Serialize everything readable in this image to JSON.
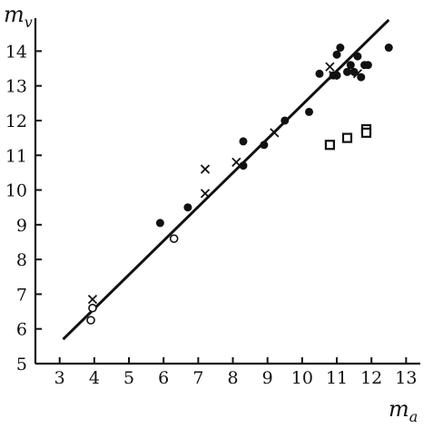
{
  "chart_data": {
    "type": "scatter",
    "title": "",
    "xlabel": "m_a",
    "ylabel": "m_v",
    "xlabel_main": "m",
    "xlabel_sub": "a",
    "ylabel_main": "m",
    "ylabel_sub": "v",
    "xlim": [
      2.3,
      13.2
    ],
    "ylim": [
      5,
      14.95
    ],
    "x_ticks": [
      3,
      4,
      5,
      6,
      7,
      8,
      9,
      10,
      11,
      12,
      13
    ],
    "y_ticks": [
      5,
      6,
      7,
      8,
      9,
      10,
      11,
      12,
      13,
      14
    ],
    "grid": false,
    "legend": "none",
    "fit_line": {
      "x": [
        3.1,
        12.5
      ],
      "y": [
        5.7,
        14.9
      ]
    },
    "series": [
      {
        "marker": "filled-circle",
        "x": [
          5.9,
          6.7,
          8.3,
          8.3,
          8.9,
          9.5,
          10.2,
          10.5,
          10.9,
          11.0,
          11.1,
          11.0,
          11.3,
          11.4,
          11.5,
          11.6,
          11.7,
          11.8,
          11.9,
          12.5
        ],
        "y": [
          9.05,
          9.5,
          11.4,
          10.7,
          11.3,
          12.0,
          12.25,
          13.35,
          13.3,
          13.9,
          14.1,
          13.3,
          13.4,
          13.6,
          13.4,
          13.85,
          13.25,
          13.6,
          13.6,
          14.1
        ]
      },
      {
        "marker": "open-circle",
        "x": [
          3.9,
          3.95,
          6.3
        ],
        "y": [
          6.25,
          6.6,
          8.6
        ]
      },
      {
        "marker": "cross",
        "x": [
          3.95,
          7.2,
          7.2,
          8.1,
          9.2,
          10.8,
          10.9,
          11.6
        ],
        "y": [
          6.85,
          10.6,
          9.9,
          10.8,
          11.65,
          13.55,
          13.3,
          13.35
        ]
      },
      {
        "marker": "open-square",
        "x": [
          10.8,
          11.3,
          11.85,
          11.85
        ],
        "y": [
          11.3,
          11.5,
          11.75,
          11.65
        ]
      }
    ]
  }
}
